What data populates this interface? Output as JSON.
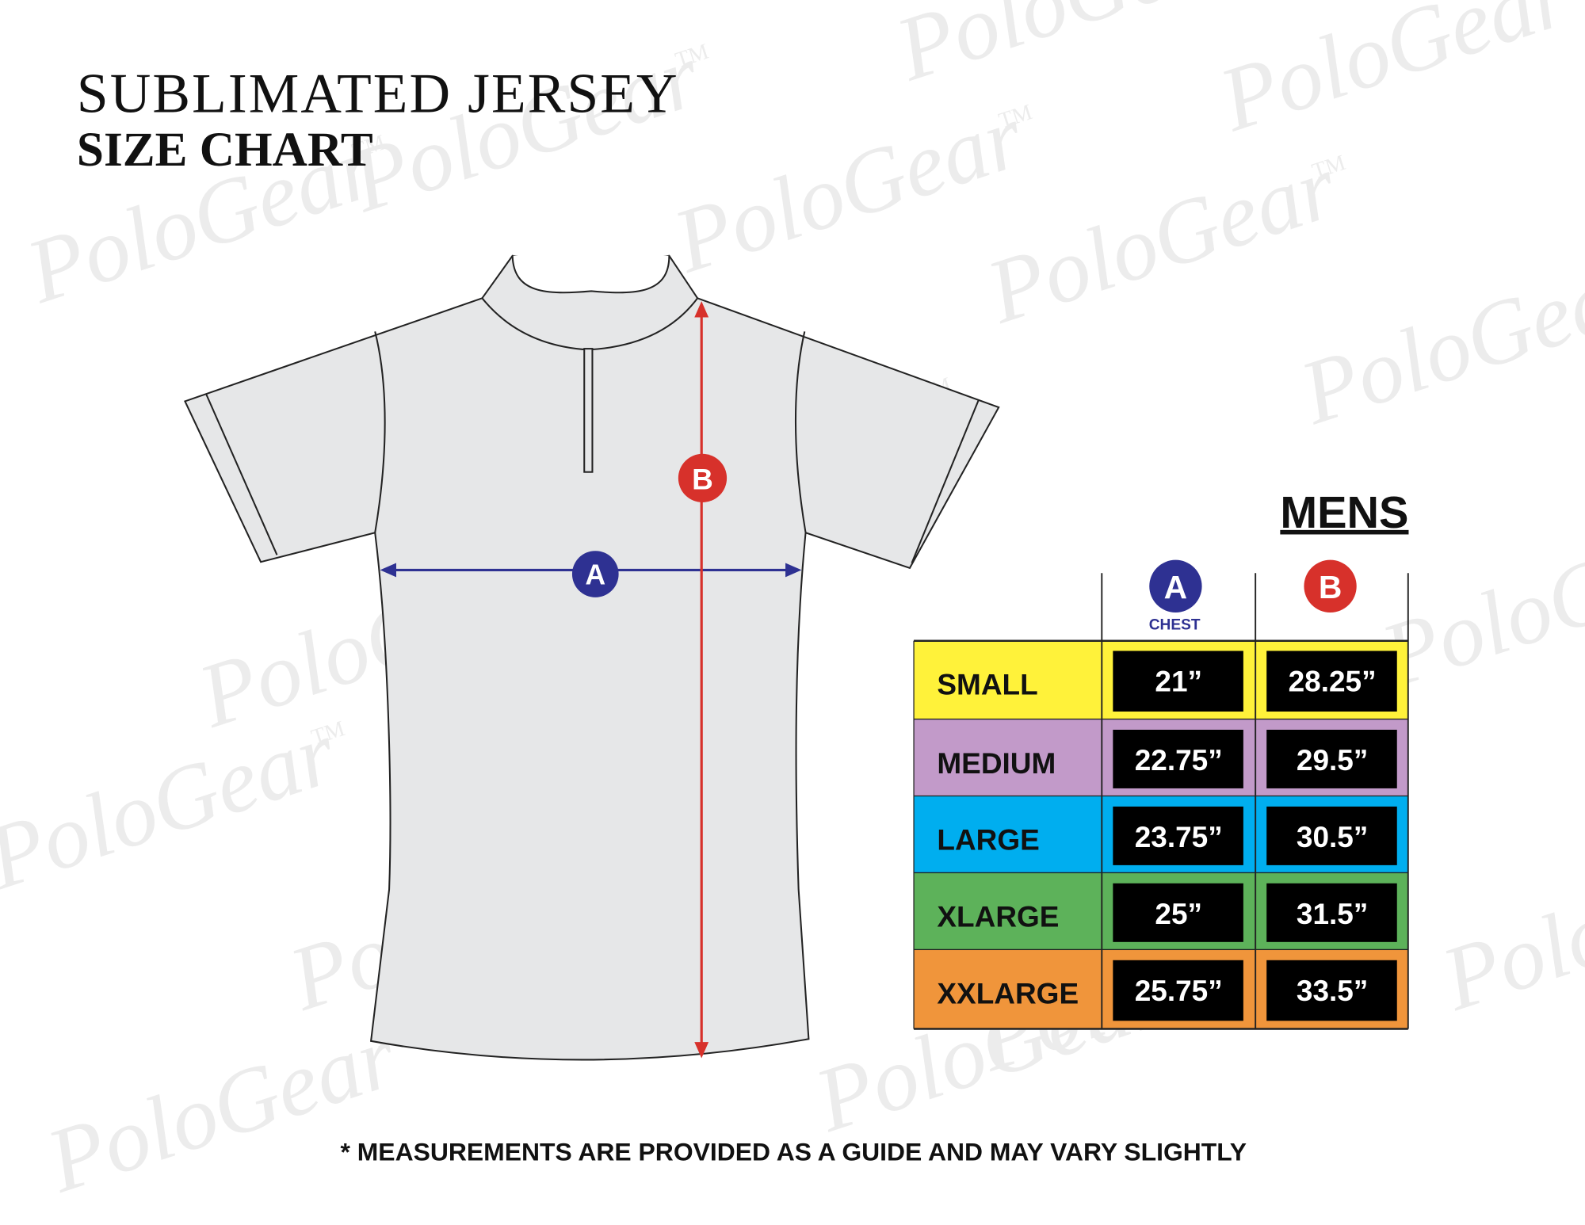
{
  "header": {
    "title": "SUBLIMATED JERSEY",
    "subtitle": "SIZE CHART"
  },
  "watermark": {
    "brand": "PoloGear",
    "mark": "TM"
  },
  "diagram": {
    "markers": [
      "A",
      "B"
    ]
  },
  "table": {
    "heading": "MENS",
    "columns": [
      {
        "marker": "A",
        "label": "CHEST"
      },
      {
        "marker": "B"
      }
    ],
    "rows": [
      {
        "size": "SMALL",
        "color": "#fff23a",
        "values": [
          "21”",
          "28.25”"
        ]
      },
      {
        "size": "MEDIUM",
        "color": "#c29ac9",
        "values": [
          "22.75”",
          "29.5”"
        ]
      },
      {
        "size": "LARGE",
        "color": "#00aeef",
        "values": [
          "23.75”",
          "30.5”"
        ]
      },
      {
        "size": "XLARGE",
        "color": "#5db25a",
        "values": [
          "25”",
          "31.5”"
        ]
      },
      {
        "size": "XXLARGE",
        "color": "#f0953b",
        "values": [
          "25.75”",
          "33.5”"
        ]
      }
    ]
  },
  "footer": {
    "note": "* MEASUREMENTS ARE PROVIDED AS A GUIDE AND MAY VARY SLIGHTLY"
  }
}
